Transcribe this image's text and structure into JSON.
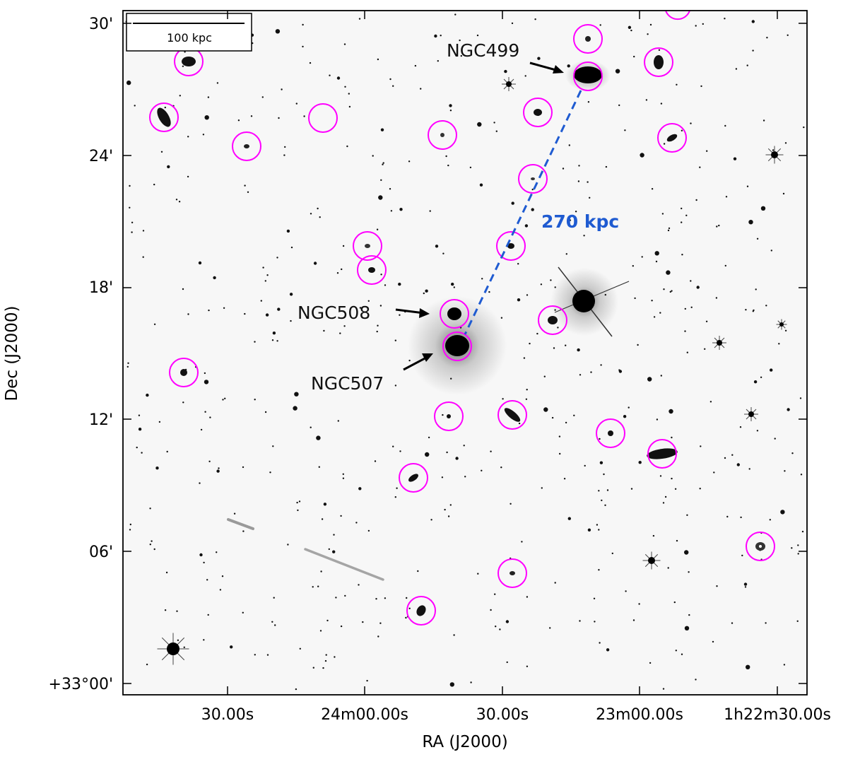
{
  "axes": {
    "x_title": "RA (J2000)",
    "y_title": "Dec (J2000)",
    "x_ticks": [
      "30.00s",
      "24m00.00s",
      "30.00s",
      "23m00.00s",
      "1h22m30.00s"
    ],
    "y_ticks": [
      "30'",
      "24'",
      "18'",
      "12'",
      "06'",
      "+33°00'"
    ]
  },
  "scale_bar": {
    "label": "100 kpc"
  },
  "galaxies": {
    "ngc499": "NGC499",
    "ngc508": "NGC508",
    "ngc507": "NGC507"
  },
  "separation": {
    "label": "270 kpc",
    "color": "#1f5bd1"
  },
  "colors": {
    "circle": "#ff00ff",
    "arrow": "#000000",
    "frame": "#000000",
    "sky": "#f7f7f7"
  }
}
